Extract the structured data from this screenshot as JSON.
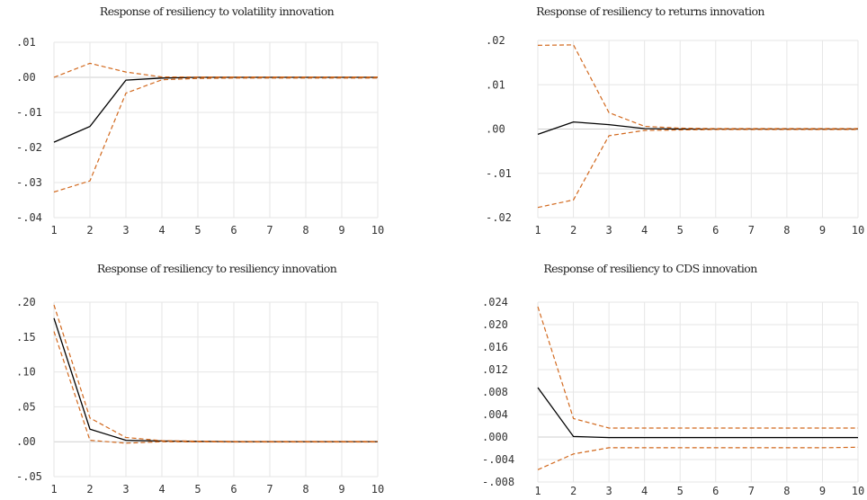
{
  "chart_data": [
    {
      "type": "line",
      "title": "Response of resiliency to volatility innovation",
      "x": [
        1,
        2,
        3,
        4,
        5,
        6,
        7,
        8,
        9,
        10
      ],
      "xticks": [
        "1",
        "2",
        "3",
        "4",
        "5",
        "6",
        "7",
        "8",
        "9",
        "10"
      ],
      "yticks": [
        ".01",
        ".00",
        "-.01",
        "-.02",
        "-.03",
        "-.04"
      ],
      "ylim": [
        -0.04,
        0.01
      ],
      "series": [
        {
          "values": [
            -0.0185,
            -0.014,
            -0.0008,
            -0.0002,
            0.0,
            0.0,
            0.0,
            0.0,
            0.0,
            0.0
          ],
          "color": "#000000",
          "style": "solid"
        },
        {
          "values": [
            0.0,
            0.004,
            0.0015,
            0.0001,
            0.0001,
            0.0001,
            0.0001,
            0.0001,
            0.0001,
            0.0001
          ],
          "color": "#d2691e",
          "style": "dashed"
        },
        {
          "values": [
            -0.0327,
            -0.0295,
            -0.0045,
            -0.0007,
            -0.0003,
            -0.0002,
            -0.0002,
            -0.0002,
            -0.0002,
            -0.0002
          ],
          "color": "#d2691e",
          "style": "dashed"
        }
      ]
    },
    {
      "type": "line",
      "title": "Response of resiliency to returns innovation",
      "x": [
        1,
        2,
        3,
        4,
        5,
        6,
        7,
        8,
        9,
        10
      ],
      "xticks": [
        "1",
        "2",
        "3",
        "4",
        "5",
        "6",
        "7",
        "8",
        "9",
        "10"
      ],
      "yticks": [
        ".02",
        ".01",
        ".00",
        "-.01",
        "-.02"
      ],
      "ylim": [
        -0.02,
        0.02
      ],
      "series": [
        {
          "values": [
            -0.0012,
            0.0016,
            0.001,
            0.0001,
            0.0,
            0.0,
            0.0,
            0.0,
            0.0,
            0.0
          ],
          "color": "#000000",
          "style": "solid"
        },
        {
          "values": [
            0.0189,
            0.019,
            0.0037,
            0.0006,
            0.0002,
            0.0001,
            0.0001,
            0.0001,
            0.0001,
            0.0001
          ],
          "color": "#d2691e",
          "style": "dashed"
        },
        {
          "values": [
            -0.0177,
            -0.016,
            -0.0015,
            -0.0003,
            -0.0002,
            -0.0001,
            -0.0001,
            -0.0001,
            -0.0001,
            -0.0001
          ],
          "color": "#d2691e",
          "style": "dashed"
        }
      ]
    },
    {
      "type": "line",
      "title": "Response of resiliency to resiliency innovation",
      "x": [
        1,
        2,
        3,
        4,
        5,
        6,
        7,
        8,
        9,
        10
      ],
      "xticks": [
        "1",
        "2",
        "3",
        "4",
        "5",
        "6",
        "7",
        "8",
        "9",
        "10"
      ],
      "yticks": [
        ".20",
        ".15",
        ".10",
        ".05",
        ".00",
        "-.05"
      ],
      "ylim": [
        -0.05,
        0.2
      ],
      "series": [
        {
          "values": [
            0.177,
            0.018,
            0.002,
            0.001,
            0.0005,
            0.0,
            0.0,
            0.0,
            0.0,
            0.0
          ],
          "color": "#000000",
          "style": "solid"
        },
        {
          "values": [
            0.196,
            0.034,
            0.006,
            0.0015,
            0.0008,
            0.0005,
            0.0004,
            0.0004,
            0.0004,
            0.0004
          ],
          "color": "#d2691e",
          "style": "dashed"
        },
        {
          "values": [
            0.158,
            0.002,
            -0.002,
            0.0,
            -0.0003,
            -0.0004,
            -0.0004,
            -0.0004,
            -0.0004,
            -0.0004
          ],
          "color": "#d2691e",
          "style": "dashed"
        }
      ]
    },
    {
      "type": "line",
      "title": "Response of resiliency to CDS innovation",
      "x": [
        1,
        2,
        3,
        4,
        5,
        6,
        7,
        8,
        9,
        10
      ],
      "xticks": [
        "1",
        "2",
        "3",
        "4",
        "5",
        "6",
        "7",
        "8",
        "9",
        "10"
      ],
      "yticks": [
        ".024",
        ".020",
        ".016",
        ".012",
        ".008",
        ".004",
        ".000",
        "-.004",
        "-.008"
      ],
      "ylim": [
        -0.008,
        0.024
      ],
      "series": [
        {
          "values": [
            0.0088,
            0.0001,
            -0.0001,
            -0.0001,
            -0.0001,
            -0.0001,
            -0.0001,
            -0.0001,
            -0.0001,
            -0.0001
          ],
          "color": "#000000",
          "style": "solid"
        },
        {
          "values": [
            0.0232,
            0.0033,
            0.0016,
            0.0016,
            0.0016,
            0.0016,
            0.0016,
            0.0016,
            0.0016,
            0.0016
          ],
          "color": "#d2691e",
          "style": "dashed"
        },
        {
          "values": [
            -0.0058,
            -0.003,
            -0.0019,
            -0.0019,
            -0.0019,
            -0.0019,
            -0.0019,
            -0.0019,
            -0.0019,
            -0.0018
          ],
          "color": "#d2691e",
          "style": "dashed"
        }
      ]
    }
  ]
}
